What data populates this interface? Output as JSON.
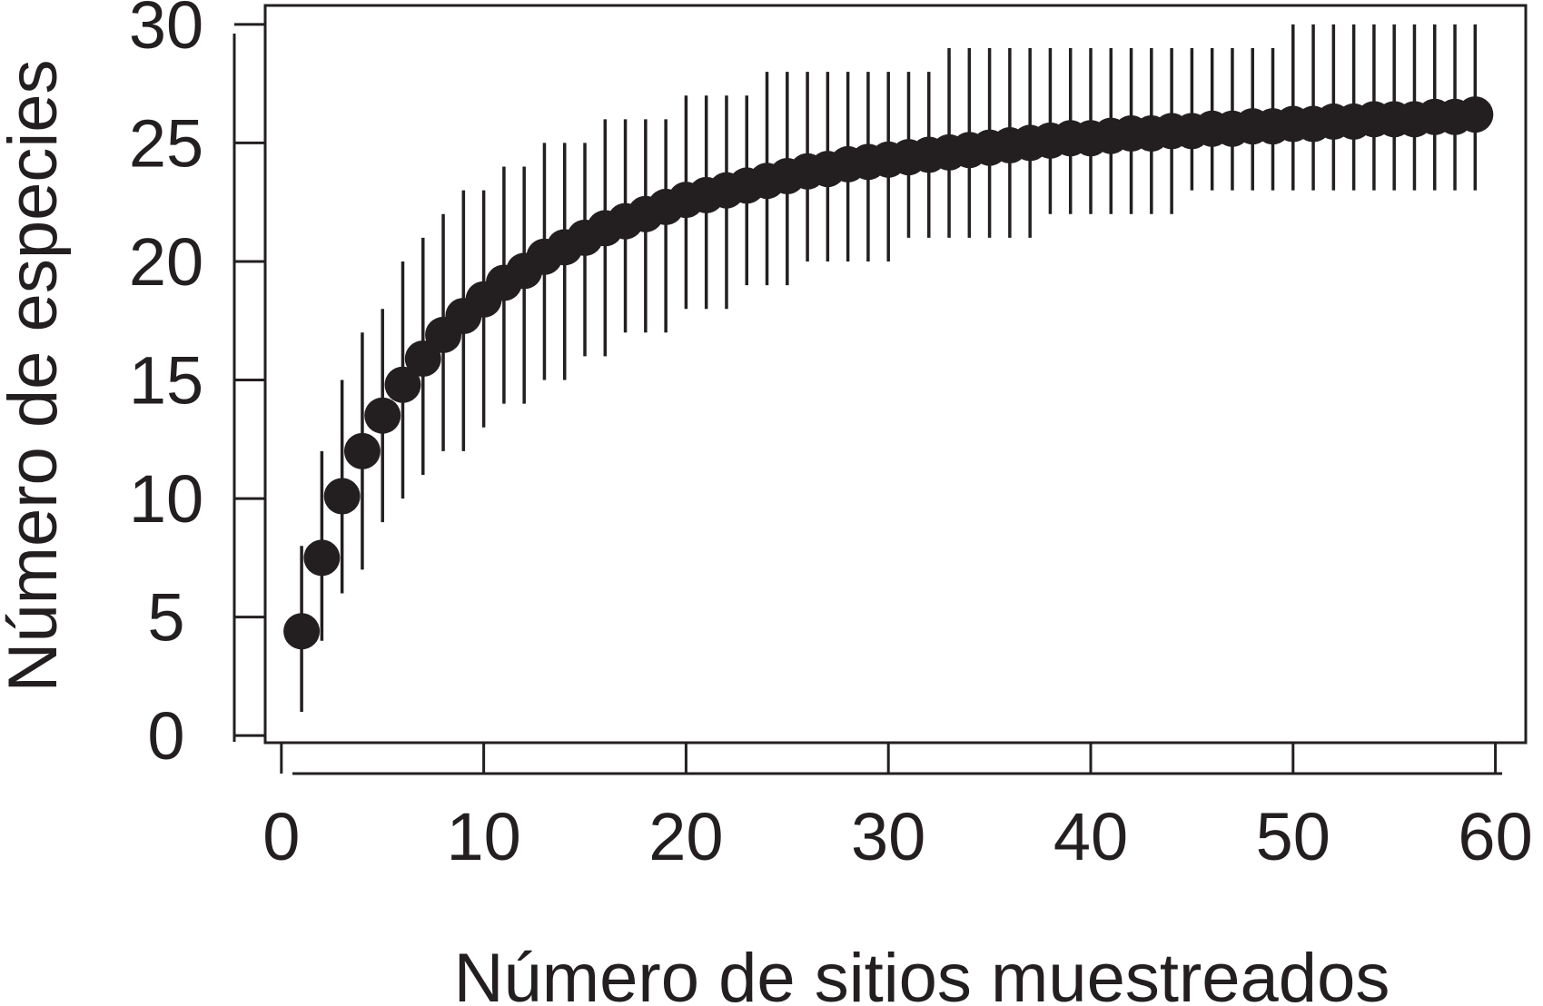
{
  "chart_data": {
    "type": "scatter",
    "title": "",
    "xlabel": "Número de sitios muestreados",
    "ylabel": "Número de especies",
    "xlim": [
      -0.8,
      61.5
    ],
    "ylim": [
      -0.3,
      30.8
    ],
    "xticks": [
      0,
      10,
      20,
      30,
      40,
      50,
      60
    ],
    "yticks": [
      0,
      5,
      10,
      15,
      20,
      25,
      30
    ],
    "grid": false,
    "legend": "none",
    "colors": {
      "ink": "#231f20",
      "background": "#ffffff"
    },
    "series": [
      {
        "x": [
          1,
          2,
          3,
          4,
          5,
          6,
          7,
          8,
          9,
          10,
          11,
          12,
          13,
          14,
          15,
          16,
          17,
          18,
          19,
          20,
          21,
          22,
          23,
          24,
          25,
          26,
          27,
          28,
          29,
          30,
          31,
          32,
          33,
          34,
          35,
          36,
          37,
          38,
          39,
          40,
          41,
          42,
          43,
          44,
          45,
          46,
          47,
          48,
          49,
          50,
          51,
          52,
          53,
          54,
          55,
          56,
          57,
          58,
          59
        ],
        "y": [
          4.4,
          7.5,
          10.1,
          12.0,
          13.5,
          14.8,
          15.9,
          16.9,
          17.7,
          18.4,
          19.1,
          19.6,
          20.2,
          20.6,
          21.0,
          21.4,
          21.7,
          22.0,
          22.3,
          22.6,
          22.8,
          23.0,
          23.2,
          23.4,
          23.6,
          23.8,
          23.9,
          24.1,
          24.2,
          24.3,
          24.4,
          24.5,
          24.6,
          24.7,
          24.8,
          24.9,
          25.0,
          25.1,
          25.2,
          25.2,
          25.3,
          25.4,
          25.4,
          25.5,
          25.5,
          25.6,
          25.6,
          25.7,
          25.7,
          25.8,
          25.8,
          25.9,
          25.9,
          26.0,
          26.0,
          26.0,
          26.1,
          26.1,
          26.2
        ],
        "lower": [
          1,
          4,
          6,
          7,
          9,
          10,
          11,
          12,
          12,
          13,
          14,
          14,
          15,
          15,
          16,
          16,
          17,
          17,
          17,
          18,
          18,
          18,
          19,
          19,
          19,
          20,
          20,
          20,
          20,
          20,
          21,
          21,
          21,
          21,
          21,
          21,
          21,
          22,
          22,
          22,
          22,
          22,
          22,
          22,
          23,
          23,
          23,
          23,
          23,
          23,
          23,
          23,
          23,
          23,
          23,
          23,
          23,
          23,
          23
        ],
        "upper": [
          8,
          12,
          15,
          17,
          18,
          20,
          21,
          22,
          23,
          23,
          24,
          24,
          25,
          25,
          25,
          26,
          26,
          26,
          26,
          27,
          27,
          27,
          27,
          28,
          28,
          28,
          28,
          28,
          28,
          28,
          28,
          28,
          29,
          29,
          29,
          29,
          29,
          29,
          29,
          29,
          29,
          29,
          29,
          29,
          29,
          29,
          29,
          29,
          29,
          30,
          30,
          30,
          30,
          30,
          30,
          30,
          30,
          30,
          30
        ]
      }
    ]
  }
}
